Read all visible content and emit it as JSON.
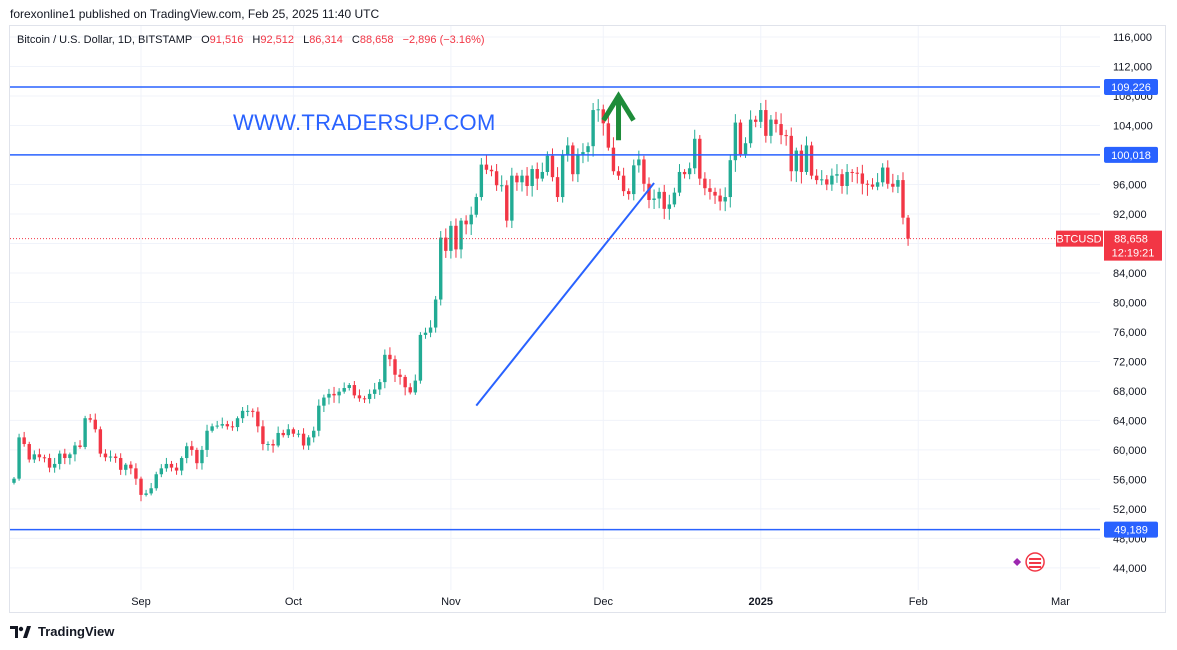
{
  "header": {
    "published": "forexonline1 published on TradingView.com, Feb 25, 2025 11:40 UTC"
  },
  "legend": {
    "symbol": "Bitcoin / U.S. Dollar, 1D, BITSTAMP",
    "o_label": "O",
    "o_value": "91,516",
    "h_label": "H",
    "h_value": "92,512",
    "l_label": "L",
    "l_value": "86,314",
    "c_label": "C",
    "c_value": "88,658",
    "change": "−2,896 (−3.16%)"
  },
  "watermark": "WWW.TRADERSUP.COM",
  "footer": {
    "logo": "TradingView"
  },
  "colors": {
    "up": "#22ab94",
    "down": "#f23645",
    "line": "#2962ff",
    "arrow": "#1e8c3a"
  },
  "chart_data": {
    "type": "candlestick",
    "title": "Bitcoin / U.S. Dollar, 1D, BITSTAMP",
    "ylim": [
      41000,
      117500
    ],
    "y_ticks": [
      116000,
      112000,
      108000,
      104000,
      100000,
      96000,
      92000,
      88000,
      84000,
      80000,
      76000,
      72000,
      68000,
      64000,
      60000,
      56000,
      52000,
      48000,
      44000
    ],
    "y_tick_labels": [
      "116,000",
      "112,000",
      "108,000",
      "104,000",
      "100,000",
      "96,000",
      "92,000",
      "88,000",
      "84,000",
      "80,000",
      "76,000",
      "72,000",
      "68,000",
      "64,000",
      "60,000",
      "56,000",
      "52,000",
      "48,000",
      "44,000"
    ],
    "x_start": "2024-08-07",
    "x_ticks": [
      {
        "label": "Sep",
        "date": "2024-09-01"
      },
      {
        "label": "Oct",
        "date": "2024-10-01"
      },
      {
        "label": "Nov",
        "date": "2024-11-01"
      },
      {
        "label": "Dec",
        "date": "2024-12-01"
      },
      {
        "label": "2025",
        "date": "2025-01-01"
      },
      {
        "label": "Feb",
        "date": "2025-02-01"
      },
      {
        "label": "Mar",
        "date": "2025-03-01"
      }
    ],
    "closes": [
      56100,
      61700,
      60800,
      58700,
      59400,
      59000,
      58900,
      57600,
      58100,
      59500,
      58900,
      59400,
      60600,
      60400,
      64300,
      64100,
      62800,
      59500,
      59000,
      59100,
      58900,
      57300,
      58000,
      57500,
      56100,
      53900,
      54100,
      54800,
      56700,
      57500,
      58100,
      57600,
      57200,
      58900,
      60500,
      60000,
      58200,
      60000,
      62600,
      63200,
      63300,
      63500,
      63200,
      63100,
      64300,
      65300,
      65300,
      65200,
      63200,
      60800,
      60800,
      60600,
      62300,
      62000,
      62800,
      62200,
      62200,
      60600,
      61700,
      62600,
      66000,
      67100,
      67600,
      67400,
      67900,
      68400,
      68800,
      67400,
      67000,
      66900,
      67600,
      68200,
      69200,
      72900,
      72300,
      70200,
      69900,
      68500,
      67800,
      69400,
      75600,
      75900,
      76600,
      80400,
      88800,
      87000,
      90400,
      87200,
      91100,
      90600,
      91900,
      94300,
      98700,
      98000,
      97800,
      95900,
      95900,
      91100,
      97200,
      96300,
      97200,
      95800,
      98100,
      96800,
      97700,
      99900,
      97000,
      94300,
      100000,
      101300,
      97400,
      100100,
      100400,
      101200,
      106100,
      106200,
      104300,
      101000,
      97800,
      97200,
      95100,
      94700,
      98600,
      99400,
      96100,
      93900,
      94100,
      95000,
      92700,
      93300,
      94900,
      97700,
      97400,
      98200,
      102200,
      96800,
      95500,
      95000,
      94500,
      93700,
      94300,
      99300,
      104400,
      100100,
      101600,
      104800,
      104500,
      106100,
      102600,
      104800,
      104200,
      102700,
      102600,
      97800,
      100600,
      97700,
      101300,
      97200,
      96600,
      96700,
      96000,
      97200,
      97400,
      95800,
      97700,
      97600,
      97500,
      96100,
      96000,
      95700,
      96300,
      98300,
      96100,
      95700,
      96600,
      91500,
      88658
    ],
    "horizontal_levels": [
      "109,226",
      "100,018",
      "49,189"
    ],
    "last_price_label": "88,658",
    "last_price_time": "12:19:21",
    "symbol_tag": "BTCUSD"
  }
}
